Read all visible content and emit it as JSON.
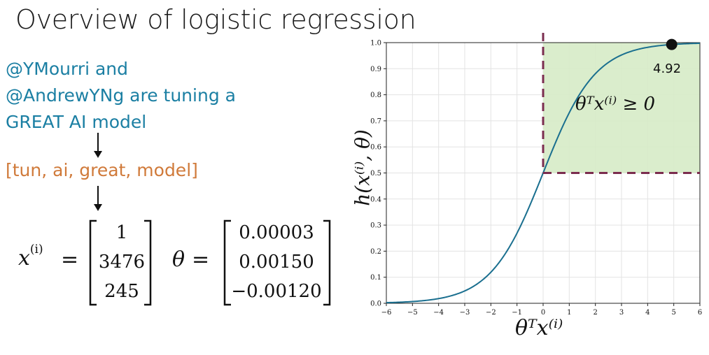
{
  "slide": {
    "title": "Overview of logistic regression",
    "tweet_lines": [
      "@YMourri and",
      "@AndrewYNg are tuning a",
      "GREAT AI model"
    ],
    "tokens": "[tun, ai, great, model]",
    "x_label": "x",
    "x_superscript": "(i)",
    "equals": "=",
    "x_vector": [
      "1",
      "3476",
      "245"
    ],
    "theta_label": "θ",
    "theta_vector": [
      "0.00003",
      "0.00150",
      "−0.00120"
    ]
  },
  "chart_data": {
    "type": "line",
    "function": "sigmoid",
    "x_range": [
      -6,
      6
    ],
    "ylim": [
      0.0,
      1.0
    ],
    "xticks": [
      "−6",
      "−5",
      "−4",
      "−3",
      "−2",
      "−1",
      "0",
      "1",
      "2",
      "3",
      "4",
      "5",
      "6"
    ],
    "yticks": [
      "0.0",
      "0.1",
      "0.2",
      "0.3",
      "0.4",
      "0.5",
      "0.6",
      "0.7",
      "0.8",
      "0.9",
      "1.0"
    ],
    "xlabel": "θᵀx⁽ⁱ⁾",
    "ylabel": "h(x⁽ⁱ⁾, θ)",
    "grid": true,
    "highlight_region": {
      "x_from": 0,
      "x_to": 6,
      "y_from": 0.5,
      "y_to": 1.0,
      "label": "θᵀx⁽ⁱ⁾ ≥ 0"
    },
    "threshold_lines": {
      "vertical_x": 0,
      "horizontal_y": 0.5
    },
    "point": {
      "x": 4.92,
      "y": 0.993,
      "label": "4.92"
    },
    "colors": {
      "curve": "#1a6f8f",
      "region": "#d6ebc7",
      "threshold": "#7b2d4f",
      "point": "#111111"
    }
  }
}
